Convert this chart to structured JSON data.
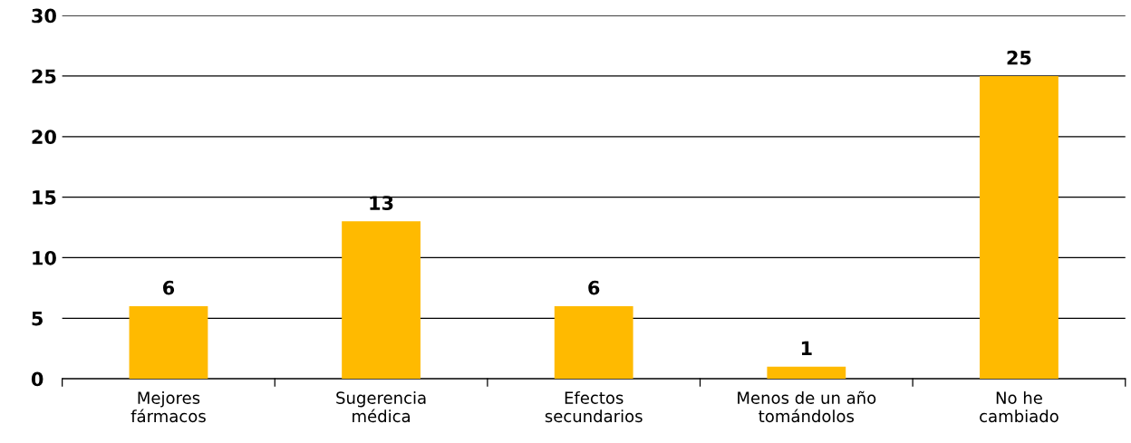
{
  "chart_data": {
    "type": "bar",
    "categories": [
      "Mejores\nfármacos",
      "Sugerencia\nmédica",
      "Efectos\nsecundarios",
      "Menos de un año\ntomándolos",
      "No he\ncambiado"
    ],
    "values": [
      6,
      13,
      6,
      1,
      25
    ],
    "color": "#ffba00",
    "ylim": [
      0,
      30
    ],
    "yticks": [
      0,
      5,
      10,
      15,
      20,
      25,
      30
    ],
    "grid": "y",
    "data_labels": true
  }
}
